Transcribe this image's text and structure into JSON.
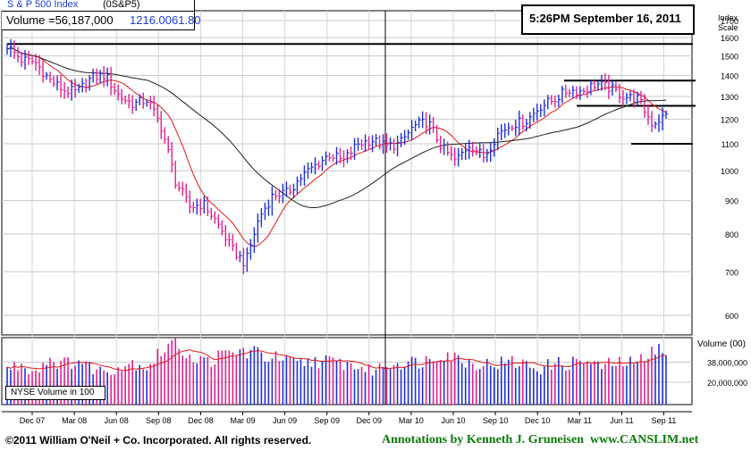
{
  "header": {
    "index_name": "S & P 500 Index",
    "symbol": "(0S&P5)",
    "volume_label": "Volume =56,187,000",
    "price": "1216.00",
    "change": "61.80",
    "timestamp": "5:26PM September 16, 2011"
  },
  "scale_label": [
    "Index",
    "Scale"
  ],
  "volume_scale_label": "Volume (00)",
  "volume_box_label": "NYSE Volume in 100",
  "footer": {
    "copyright": "©2011 William O'Neil + Co. Incorporated. All rights reserved.",
    "annotation": "Annotations by Kenneth J. Gruneisen  www.CANSLIM.net"
  },
  "colors": {
    "up": "#1f2fd6",
    "down": "#e0208f",
    "ma_short": "#e01818",
    "ma_long": "#202020",
    "header_blue": "#1a3fd0",
    "footer_green": "#0a7a0a"
  },
  "chart_data": [
    {
      "type": "line",
      "title": "S & P 500 Index",
      "y_scale": "log",
      "ylim": [
        560,
        1760
      ],
      "y_ticks": [
        600,
        700,
        800,
        900,
        1000,
        1100,
        1200,
        1300,
        1400,
        1500,
        1600,
        1700
      ],
      "x_ticks": [
        "Dec 07",
        "Mar 08",
        "Jun 08",
        "Sep 08",
        "Dec 08",
        "Mar 09",
        "Jun 09",
        "Sep 09",
        "Dec 09",
        "Mar 10",
        "Jun 10",
        "Sep 10",
        "Dec 10",
        "Mar 11",
        "Jun 11",
        "Sep 11"
      ],
      "x": [
        "Oct 07",
        "Nov 07",
        "Dec 07",
        "Jan 08",
        "Feb 08",
        "Mar 08",
        "Apr 08",
        "May 08",
        "Jun 08",
        "Jul 08",
        "Aug 08",
        "Sep 08",
        "Oct 08",
        "Nov 08",
        "Dec 08",
        "Jan 09",
        "Feb 09",
        "Mar 09",
        "Apr 09",
        "May 09",
        "Jun 09",
        "Jul 09",
        "Aug 09",
        "Sep 09",
        "Oct 09",
        "Nov 09",
        "Dec 09",
        "Jan 10",
        "Feb 10",
        "Mar 10",
        "Apr 10",
        "May 10",
        "Jun 10",
        "Jul 10",
        "Aug 10",
        "Sep 10",
        "Oct 10",
        "Nov 10",
        "Dec 10",
        "Jan 11",
        "Feb 11",
        "Mar 11",
        "Apr 11",
        "May 11",
        "Jun 11",
        "Jul 11",
        "Aug 11",
        "Sep 11"
      ],
      "series": [
        {
          "values": [
            1555,
            1480,
            1468,
            1380,
            1330,
            1320,
            1390,
            1400,
            1300,
            1265,
            1285,
            1165,
            965,
            880,
            890,
            830,
            760,
            720,
            850,
            920,
            925,
            980,
            1020,
            1060,
            1035,
            1100,
            1115,
            1090,
            1100,
            1170,
            1190,
            1085,
            1035,
            1100,
            1050,
            1140,
            1180,
            1190,
            1255,
            1285,
            1330,
            1325,
            1360,
            1340,
            1300,
            1290,
            1180,
            1216
          ]
        }
      ],
      "annotations": [
        {
          "type": "horizontal_line",
          "value": 1565
        },
        {
          "type": "horizontal_line",
          "value": 1375
        },
        {
          "type": "horizontal_line",
          "value": 1258
        },
        {
          "type": "horizontal_line",
          "value": 1100
        }
      ]
    },
    {
      "type": "bar",
      "title": "Volume (00)",
      "y_ticks": [
        "38,000,000",
        "20,000,000"
      ],
      "ylim": [
        0,
        60000000
      ],
      "values_note": "weekly NYSE volume in 100s",
      "values": [
        32000000,
        36000000,
        30000000,
        42000000,
        36000000,
        40000000,
        33000000,
        30000000,
        34000000,
        38000000,
        34000000,
        48000000,
        58000000,
        44000000,
        38000000,
        42000000,
        46000000,
        48000000,
        45000000,
        42000000,
        38000000,
        36000000,
        40000000,
        38000000,
        37000000,
        34000000,
        30000000,
        36000000,
        38000000,
        38000000,
        40000000,
        48000000,
        42000000,
        38000000,
        36000000,
        37000000,
        38000000,
        36000000,
        32000000,
        37000000,
        36000000,
        40000000,
        34000000,
        36000000,
        38000000,
        36000000,
        54000000,
        43000000
      ]
    }
  ]
}
